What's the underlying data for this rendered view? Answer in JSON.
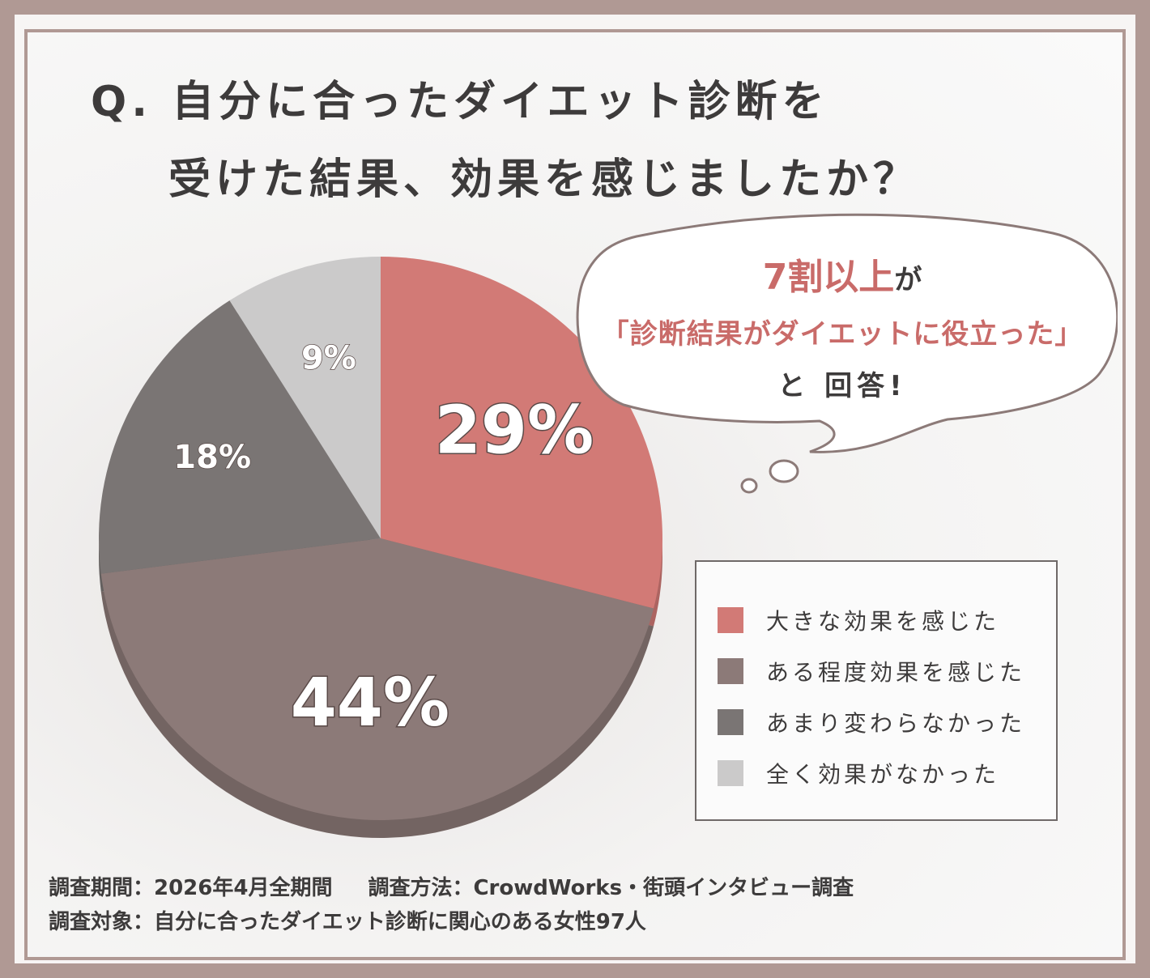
{
  "title": {
    "line1": "Q. 自分に合ったダイエット診断を",
    "line2": "受けた結果、効果を感じましたか？"
  },
  "callout": {
    "highlight": "7割以上",
    "particle": "が",
    "quote": "「診断結果がダイエットに役立った」",
    "ending": "と 回答!"
  },
  "chart_data": {
    "type": "pie",
    "categories": [
      "大きな効果を感じた",
      "ある程度効果を感じた",
      "あまり変わらなかった",
      "全く効果がなかった"
    ],
    "values": [
      29,
      44,
      18,
      9
    ],
    "labels": [
      "29%",
      "44%",
      "18%",
      "9%"
    ],
    "colors": [
      "#d27a76",
      "#8c7a78",
      "#7a7574",
      "#cbcaca"
    ],
    "legend_position": "right"
  },
  "footer": {
    "period": "調査期間：2026年4月全期間",
    "method": "調査方法：CrowdWorks・街頭インタビュー調査",
    "target": "調査対象：自分に合ったダイエット診断に関心のある女性97人"
  }
}
